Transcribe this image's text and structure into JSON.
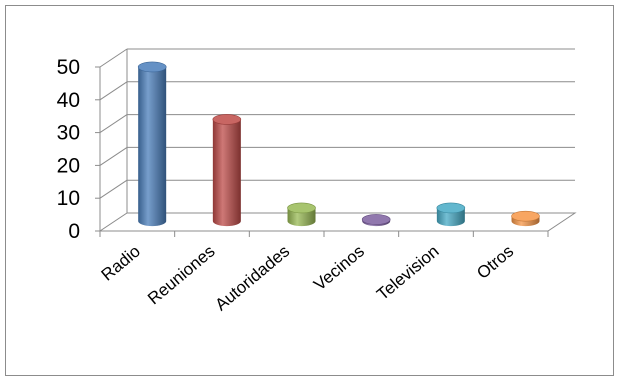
{
  "chart_data": {
    "type": "bar",
    "style": "3d-cylinder",
    "categories": [
      "Radio",
      "Reuniones",
      "Autoridades",
      "Vecinos",
      "Television",
      "Otros"
    ],
    "values": [
      47,
      31,
      4,
      0.5,
      4,
      1.5
    ],
    "colors": [
      "#4a7ebb",
      "#be4b48",
      "#98b954",
      "#7d60a0",
      "#46aac5",
      "#f79646"
    ],
    "ylim": [
      0,
      50
    ],
    "yticks": [
      0,
      10,
      20,
      30,
      40,
      50
    ],
    "grid": true,
    "legend": "none"
  }
}
